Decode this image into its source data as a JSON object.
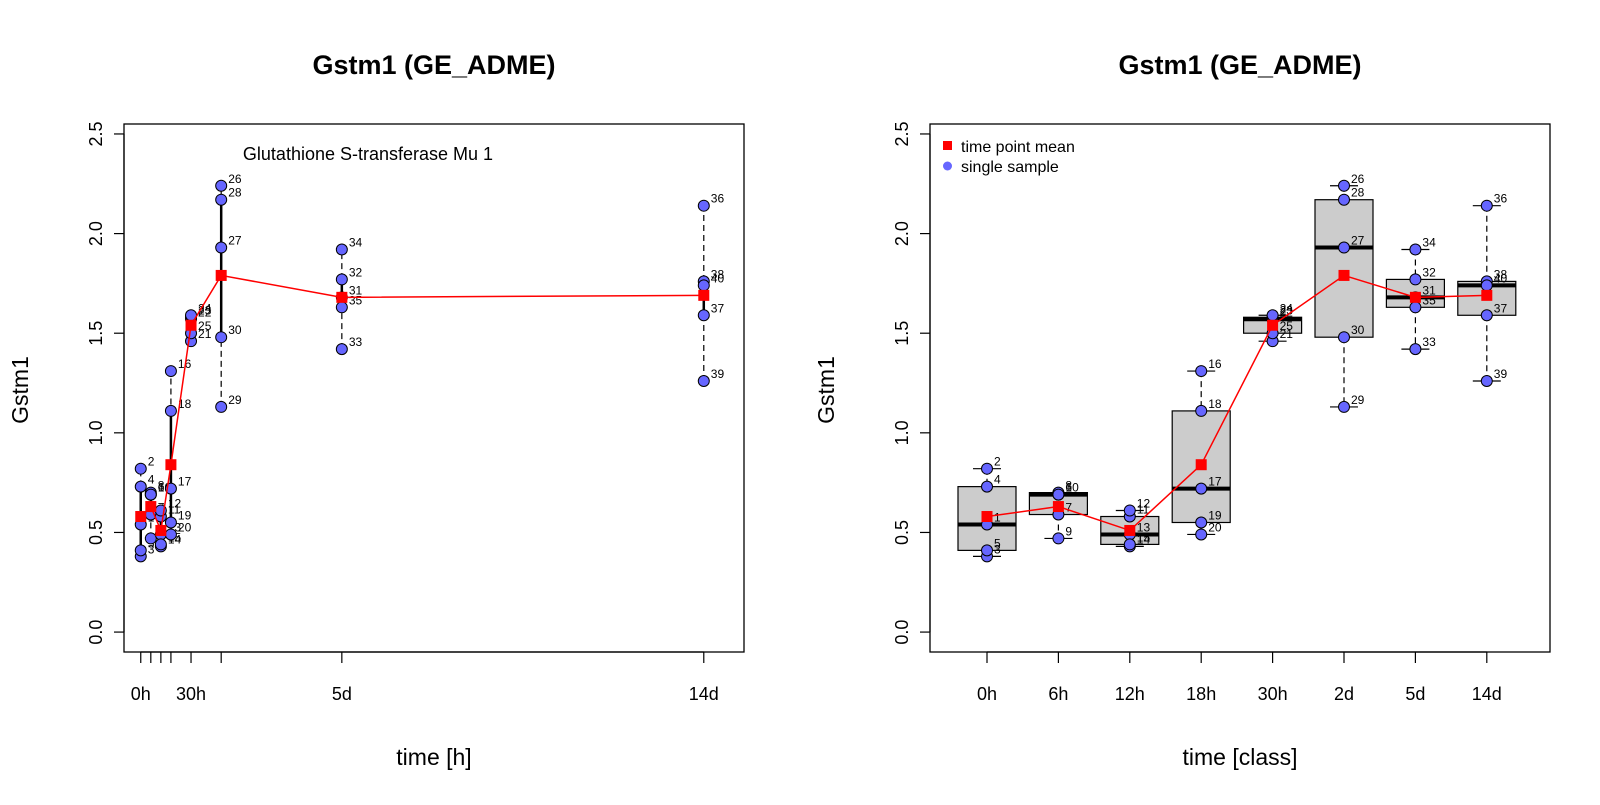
{
  "chart_data": [
    {
      "type": "scatter",
      "title": "Gstm1 (GE_ADME)",
      "subtitle": "Glutathione S-transferase Mu 1",
      "xlabel": "time [h]",
      "ylabel": "Gstm1",
      "xlim": [
        -10,
        360
      ],
      "ylim": [
        -0.1,
        2.55
      ],
      "yticks": [
        "0.0",
        "0.5",
        "1.0",
        "1.5",
        "2.0",
        "2.5"
      ],
      "xticks": [
        {
          "x": 0,
          "label": "0h"
        },
        {
          "x": 6,
          "label": ""
        },
        {
          "x": 12,
          "label": ""
        },
        {
          "x": 18,
          "label": ""
        },
        {
          "x": 30,
          "label": "30h"
        },
        {
          "x": 48,
          "label": ""
        },
        {
          "x": 120,
          "label": "5d"
        },
        {
          "x": 336,
          "label": "14d"
        }
      ],
      "points": [
        {
          "id": "1",
          "x": 0,
          "y": 0.54
        },
        {
          "id": "2",
          "x": 0,
          "y": 0.82
        },
        {
          "id": "3",
          "x": 0,
          "y": 0.38
        },
        {
          "id": "4",
          "x": 0,
          "y": 0.73
        },
        {
          "id": "5",
          "x": 0,
          "y": 0.41
        },
        {
          "id": "6",
          "x": 6,
          "y": 0.69
        },
        {
          "id": "7",
          "x": 6,
          "y": 0.59
        },
        {
          "id": "8",
          "x": 6,
          "y": 0.7
        },
        {
          "id": "9",
          "x": 6,
          "y": 0.47
        },
        {
          "id": "10",
          "x": 6,
          "y": 0.69
        },
        {
          "id": "11",
          "x": 12,
          "y": 0.58
        },
        {
          "id": "12",
          "x": 12,
          "y": 0.61
        },
        {
          "id": "13",
          "x": 12,
          "y": 0.49
        },
        {
          "id": "14",
          "x": 12,
          "y": 0.43
        },
        {
          "id": "15",
          "x": 12,
          "y": 0.44
        },
        {
          "id": "16",
          "x": 18,
          "y": 1.31
        },
        {
          "id": "17",
          "x": 18,
          "y": 0.72
        },
        {
          "id": "18",
          "x": 18,
          "y": 1.11
        },
        {
          "id": "19",
          "x": 18,
          "y": 0.55
        },
        {
          "id": "20",
          "x": 18,
          "y": 0.49
        },
        {
          "id": "21",
          "x": 30,
          "y": 1.46
        },
        {
          "id": "22",
          "x": 30,
          "y": 1.57
        },
        {
          "id": "23",
          "x": 30,
          "y": 1.58
        },
        {
          "id": "24",
          "x": 30,
          "y": 1.59
        },
        {
          "id": "25",
          "x": 30,
          "y": 1.5
        },
        {
          "id": "26",
          "x": 48,
          "y": 2.24
        },
        {
          "id": "27",
          "x": 48,
          "y": 1.93
        },
        {
          "id": "28",
          "x": 48,
          "y": 2.17
        },
        {
          "id": "29",
          "x": 48,
          "y": 1.13
        },
        {
          "id": "30",
          "x": 48,
          "y": 1.48
        },
        {
          "id": "31",
          "x": 120,
          "y": 1.68
        },
        {
          "id": "32",
          "x": 120,
          "y": 1.77
        },
        {
          "id": "33",
          "x": 120,
          "y": 1.42
        },
        {
          "id": "34",
          "x": 120,
          "y": 1.92
        },
        {
          "id": "35",
          "x": 120,
          "y": 1.63
        },
        {
          "id": "36",
          "x": 336,
          "y": 2.14
        },
        {
          "id": "37",
          "x": 336,
          "y": 1.59
        },
        {
          "id": "38",
          "x": 336,
          "y": 1.76
        },
        {
          "id": "39",
          "x": 336,
          "y": 1.26
        },
        {
          "id": "40",
          "x": 336,
          "y": 1.74
        }
      ],
      "mean_series": [
        {
          "x": 0,
          "y": 0.58
        },
        {
          "x": 6,
          "y": 0.63
        },
        {
          "x": 12,
          "y": 0.51
        },
        {
          "x": 18,
          "y": 0.84
        },
        {
          "x": 30,
          "y": 1.54
        },
        {
          "x": 48,
          "y": 1.79
        },
        {
          "x": 120,
          "y": 1.68
        },
        {
          "x": 336,
          "y": 1.69
        }
      ],
      "colors": {
        "point": "#6666ff",
        "mean": "#ff0000"
      }
    },
    {
      "type": "box",
      "title": "Gstm1 (GE_ADME)",
      "xlabel": "time [class]",
      "ylabel": "Gstm1",
      "ylim": [
        -0.1,
        2.55
      ],
      "yticks": [
        "0.0",
        "0.5",
        "1.0",
        "1.5",
        "2.0",
        "2.5"
      ],
      "categories": [
        "0h",
        "6h",
        "12h",
        "18h",
        "30h",
        "2d",
        "5d",
        "14d"
      ],
      "legend": {
        "position": "top-left",
        "entries": [
          "time point mean",
          "single sample"
        ]
      },
      "boxes": [
        {
          "min": 0.38,
          "q1": 0.41,
          "median": 0.54,
          "q3": 0.73,
          "max": 0.82
        },
        {
          "min": 0.47,
          "q1": 0.59,
          "median": 0.69,
          "q3": 0.7,
          "max": 0.7
        },
        {
          "min": 0.43,
          "q1": 0.44,
          "median": 0.49,
          "q3": 0.58,
          "max": 0.61
        },
        {
          "min": 0.49,
          "q1": 0.55,
          "median": 0.72,
          "q3": 1.11,
          "max": 1.31
        },
        {
          "min": 1.46,
          "q1": 1.5,
          "median": 1.57,
          "q3": 1.58,
          "max": 1.59
        },
        {
          "min": 1.13,
          "q1": 1.48,
          "median": 1.93,
          "q3": 2.17,
          "max": 2.24
        },
        {
          "min": 1.42,
          "q1": 1.63,
          "median": 1.68,
          "q3": 1.77,
          "max": 1.92
        },
        {
          "min": 1.26,
          "q1": 1.59,
          "median": 1.74,
          "q3": 1.76,
          "max": 2.14
        }
      ],
      "colors": {
        "box": "#cccccc",
        "point": "#6666ff",
        "mean": "#ff0000"
      }
    }
  ]
}
